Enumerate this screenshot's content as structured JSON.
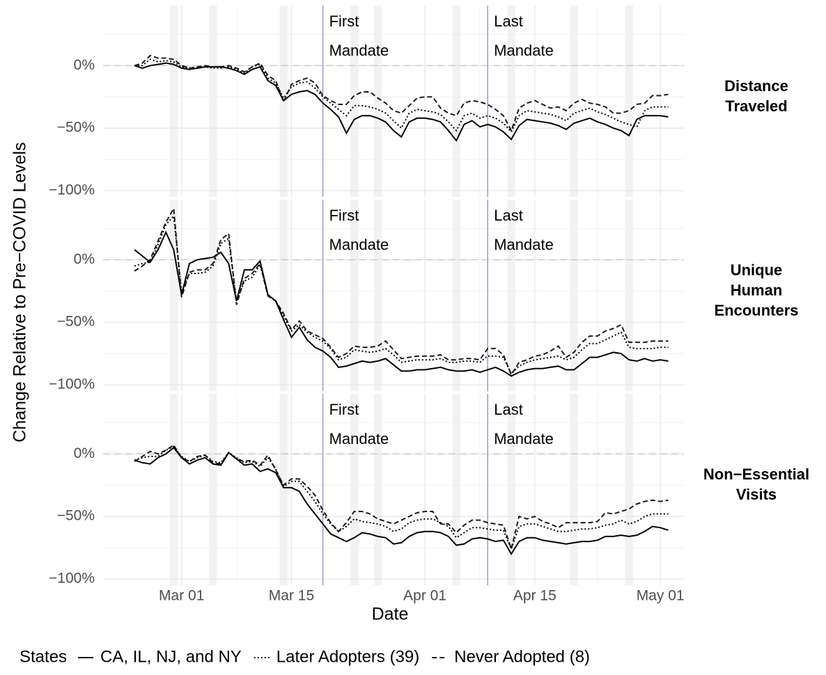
{
  "chart_data": {
    "type": "line",
    "x_label": "Date",
    "y_label": "Change Relative to Pre−COVID Levels",
    "grid": true,
    "hline": 0,
    "x": [
      "Feb 24",
      "Feb 25",
      "Feb 26",
      "Feb 27",
      "Feb 28",
      "Feb 29",
      "Mar 01",
      "Mar 02",
      "Mar 03",
      "Mar 04",
      "Mar 05",
      "Mar 06",
      "Mar 07",
      "Mar 08",
      "Mar 09",
      "Mar 10",
      "Mar 11",
      "Mar 12",
      "Mar 13",
      "Mar 14",
      "Mar 15",
      "Mar 16",
      "Mar 17",
      "Mar 18",
      "Mar 19",
      "Mar 20",
      "Mar 21",
      "Mar 22",
      "Mar 23",
      "Mar 24",
      "Mar 25",
      "Mar 26",
      "Mar 27",
      "Mar 28",
      "Mar 29",
      "Mar 30",
      "Mar 31",
      "Apr 01",
      "Apr 02",
      "Apr 03",
      "Apr 04",
      "Apr 05",
      "Apr 06",
      "Apr 07",
      "Apr 08",
      "Apr 09",
      "Apr 10",
      "Apr 11",
      "Apr 12",
      "Apr 13",
      "Apr 14",
      "Apr 15",
      "Apr 16",
      "Apr 17",
      "Apr 18",
      "Apr 19",
      "Apr 20",
      "Apr 21",
      "Apr 22",
      "Apr 23",
      "Apr 24",
      "Apr 25",
      "Apr 26",
      "Apr 27",
      "Apr 28",
      "Apr 29",
      "Apr 30",
      "May 01",
      "May 02"
    ],
    "xlim": [
      "Feb 20",
      "May 04"
    ],
    "xticks": [
      "Mar 01",
      "Mar 15",
      "Apr 01",
      "Apr 15",
      "May 01"
    ],
    "ylim": [
      -105,
      48
    ],
    "yticks": [
      {
        "value": -100,
        "label": "−100%"
      },
      {
        "value": -50,
        "label": "−50%"
      },
      {
        "value": 0,
        "label": "0%"
      }
    ],
    "shaded": [
      "Feb 29",
      "Mar 05",
      "Mar 14",
      "Mar 23",
      "Mar 26",
      "Apr 05",
      "Apr 12",
      "Apr 20",
      "Apr 27"
    ],
    "annotations": [
      {
        "x": "Mar 19",
        "lines": [
          "First",
          "Mandate"
        ]
      },
      {
        "x": "Apr 09",
        "lines": [
          "Last",
          "Mandate"
        ]
      }
    ],
    "annotation_color": "#9a9ad0",
    "legend_title": "States",
    "series": [
      {
        "name": "CA, IL, NJ, and NY",
        "color": "#000000",
        "dash": "solid"
      },
      {
        "name": "Later Adopters (39)",
        "color": "#000000",
        "dash": "dotted"
      },
      {
        "name": "Never Adopted (8)",
        "color": "#1a1a1a",
        "dash": "dashed"
      }
    ],
    "panels": [
      {
        "label": [
          "Distance",
          "Traveled"
        ],
        "values": [
          [
            0,
            -2,
            0,
            1,
            2,
            1,
            -2,
            -3,
            -2,
            -1,
            -1,
            -1,
            -2,
            -4,
            -7,
            -3,
            -1,
            -12,
            -16,
            -28,
            -23,
            -21,
            -20,
            -23,
            -30,
            -35,
            -41,
            -54,
            -43,
            -40,
            -40,
            -42,
            -45,
            -52,
            -57,
            -45,
            -42,
            -42,
            -43,
            -45,
            -52,
            -60,
            -47,
            -44,
            -49,
            -47,
            -49,
            -53,
            -59,
            -48,
            -43,
            -44,
            -45,
            -46,
            -48,
            -51,
            -46,
            -44,
            -42,
            -45,
            -47,
            -50,
            -52,
            -56,
            -43,
            -40,
            -40,
            -40,
            -41
          ],
          [
            0,
            0,
            5,
            3,
            4,
            3,
            -1,
            -2,
            -2,
            -1,
            -2,
            -2,
            -1,
            -3,
            -6,
            -1,
            1,
            -10,
            -14,
            -26,
            -17,
            -14,
            -13,
            -18,
            -25,
            -30,
            -35,
            -40,
            -32,
            -32,
            -33,
            -35,
            -38,
            -44,
            -50,
            -38,
            -35,
            -36,
            -37,
            -39,
            -45,
            -52,
            -40,
            -38,
            -42,
            -40,
            -42,
            -46,
            -53,
            -40,
            -36,
            -37,
            -38,
            -39,
            -41,
            -44,
            -38,
            -36,
            -34,
            -37,
            -39,
            -42,
            -45,
            -47,
            -49,
            -36,
            -33,
            -33,
            -33
          ],
          [
            0,
            2,
            8,
            6,
            6,
            5,
            0,
            -2,
            -1,
            0,
            -1,
            -1,
            0,
            -2,
            -5,
            -1,
            2,
            -8,
            -12,
            -29,
            -15,
            -12,
            -10,
            -14,
            -24,
            -28,
            -31,
            -31,
            -24,
            -21,
            -21,
            -26,
            -30,
            -36,
            -38,
            -32,
            -26,
            -25,
            -25,
            -34,
            -38,
            -40,
            -30,
            -28,
            -29,
            -31,
            -35,
            -40,
            -52,
            -34,
            -30,
            -28,
            -31,
            -34,
            -33,
            -36,
            -30,
            -27,
            -30,
            -31,
            -33,
            -38,
            -38,
            -36,
            -31,
            -30,
            -24,
            -24,
            -23
          ]
        ]
      },
      {
        "label": [
          "Unique",
          "Human",
          "Encounters"
        ],
        "values": [
          [
            8,
            3,
            -2,
            8,
            22,
            8,
            -28,
            -3,
            0,
            1,
            2,
            6,
            -3,
            -33,
            -8,
            -8,
            -1,
            -28,
            -33,
            -48,
            -62,
            -54,
            -64,
            -70,
            -73,
            -78,
            -86,
            -85,
            -83,
            -81,
            -82,
            -81,
            -79,
            -84,
            -89,
            -89,
            -88,
            -88,
            -87,
            -86,
            -88,
            -89,
            -89,
            -88,
            -90,
            -88,
            -86,
            -89,
            -93,
            -90,
            -88,
            -87,
            -87,
            -86,
            -85,
            -88,
            -88,
            -83,
            -78,
            -78,
            -76,
            -74,
            -75,
            -80,
            -81,
            -79,
            -81,
            -80,
            -81
          ],
          [
            -5,
            -3,
            -2,
            12,
            28,
            35,
            -26,
            -11,
            -11,
            -10,
            -5,
            13,
            17,
            -33,
            -17,
            -14,
            -4,
            -28,
            -33,
            -45,
            -57,
            -52,
            -58,
            -62,
            -65,
            -71,
            -80,
            -78,
            -72,
            -73,
            -74,
            -73,
            -71,
            -76,
            -82,
            -81,
            -80,
            -80,
            -80,
            -79,
            -82,
            -82,
            -81,
            -81,
            -82,
            -77,
            -77,
            -78,
            -91,
            -85,
            -82,
            -80,
            -79,
            -78,
            -77,
            -80,
            -78,
            -72,
            -67,
            -67,
            -64,
            -61,
            -58,
            -70,
            -71,
            -71,
            -71,
            -70,
            -70
          ],
          [
            -9,
            -5,
            0,
            15,
            30,
            41,
            -30,
            -10,
            -8,
            -8,
            -3,
            16,
            21,
            -36,
            -15,
            -11,
            -3,
            -29,
            -33,
            -43,
            -56,
            -49,
            -57,
            -60,
            -63,
            -70,
            -78,
            -75,
            -69,
            -70,
            -70,
            -69,
            -65,
            -72,
            -79,
            -78,
            -77,
            -77,
            -77,
            -76,
            -80,
            -80,
            -79,
            -79,
            -80,
            -71,
            -71,
            -76,
            -92,
            -82,
            -80,
            -77,
            -76,
            -73,
            -69,
            -78,
            -74,
            -66,
            -61,
            -61,
            -57,
            -55,
            -52,
            -66,
            -66,
            -66,
            -65,
            -65,
            -65
          ]
        ]
      },
      {
        "label": [
          "Non−Essential",
          "Visits"
        ],
        "values": [
          [
            -5,
            -7,
            -8,
            -3,
            0,
            5,
            -3,
            -8,
            -5,
            -3,
            -8,
            -9,
            1,
            -4,
            -9,
            -8,
            -14,
            -12,
            -15,
            -27,
            -27,
            -30,
            -40,
            -48,
            -56,
            -64,
            -67,
            -70,
            -67,
            -63,
            -64,
            -66,
            -67,
            -72,
            -71,
            -66,
            -63,
            -62,
            -62,
            -63,
            -66,
            -73,
            -72,
            -68,
            -67,
            -68,
            -70,
            -69,
            -80,
            -70,
            -67,
            -67,
            -69,
            -70,
            -71,
            -72,
            -71,
            -70,
            -70,
            -69,
            -66,
            -66,
            -65,
            -66,
            -65,
            -62,
            -58,
            -59,
            -61
          ],
          [
            -5,
            -3,
            -2,
            -2,
            3,
            6,
            -2,
            -6,
            -3,
            -1,
            -6,
            -7,
            1,
            -3,
            -7,
            -6,
            -10,
            -3,
            -12,
            -26,
            -22,
            -22,
            -30,
            -38,
            -48,
            -56,
            -62,
            -58,
            -52,
            -54,
            -55,
            -56,
            -58,
            -62,
            -60,
            -55,
            -53,
            -52,
            -52,
            -55,
            -58,
            -67,
            -63,
            -59,
            -59,
            -60,
            -61,
            -61,
            -76,
            -58,
            -56,
            -56,
            -58,
            -60,
            -62,
            -62,
            -61,
            -60,
            -60,
            -59,
            -57,
            -56,
            -53,
            -56,
            -54,
            -50,
            -48,
            -48,
            -48
          ],
          [
            -6,
            -2,
            2,
            0,
            3,
            7,
            -3,
            -6,
            -2,
            -1,
            -7,
            -8,
            1,
            -4,
            -6,
            -5,
            -9,
            -1,
            -13,
            -25,
            -20,
            -20,
            -26,
            -33,
            -45,
            -55,
            -62,
            -55,
            -46,
            -46,
            -48,
            -52,
            -54,
            -56,
            -53,
            -50,
            -47,
            -46,
            -46,
            -56,
            -56,
            -63,
            -57,
            -53,
            -53,
            -55,
            -56,
            -57,
            -76,
            -50,
            -52,
            -50,
            -54,
            -56,
            -59,
            -55,
            -55,
            -55,
            -55,
            -54,
            -47,
            -48,
            -46,
            -44,
            -40,
            -38,
            -37,
            -38,
            -37
          ]
        ]
      }
    ]
  }
}
